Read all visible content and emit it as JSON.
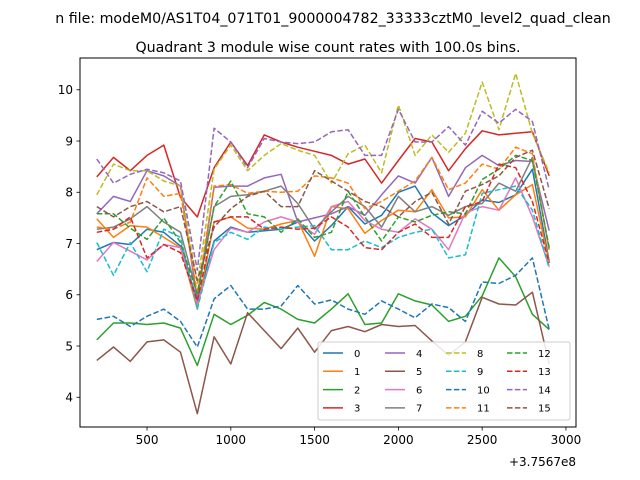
{
  "chart_data": {
    "type": "line",
    "suptitle": "n file: modeM0/AS1T04_071T01_9000004782_33333cztM0_level2_quad_clean",
    "title": "Quadrant 3 module wise count rates with 100.0s bins.",
    "xlabel": "",
    "ylabel": "",
    "offset_label": "+3.7567e8",
    "xlim": [
      100,
      3060
    ],
    "ylim": [
      3.42,
      10.62
    ],
    "xticks": [
      500,
      1000,
      1500,
      2000,
      2500,
      3000
    ],
    "yticks": [
      4,
      5,
      6,
      7,
      8,
      9,
      10
    ],
    "x": [
      200,
      300,
      400,
      500,
      600,
      700,
      800,
      900,
      1000,
      1100,
      1200,
      1300,
      1400,
      1500,
      1600,
      1700,
      1800,
      1900,
      2000,
      2100,
      2200,
      2300,
      2400,
      2500,
      2600,
      2700,
      2800,
      2900
    ],
    "series": [
      {
        "name": "0",
        "color": "#1f77b4",
        "dash": "solid",
        "values": [
          6.88,
          7.02,
          6.98,
          7.28,
          7.22,
          6.95,
          5.88,
          7.05,
          7.32,
          7.22,
          7.25,
          7.28,
          7.42,
          7.05,
          7.35,
          7.72,
          7.38,
          7.55,
          8.0,
          8.12,
          7.6,
          7.35,
          7.55,
          7.85,
          7.8,
          7.95,
          8.45,
          6.65
        ]
      },
      {
        "name": "1",
        "color": "#ff7f0e",
        "dash": "solid",
        "values": [
          7.48,
          7.12,
          7.35,
          7.32,
          7.12,
          6.92,
          5.72,
          7.42,
          7.52,
          7.3,
          7.28,
          7.38,
          7.45,
          6.75,
          7.72,
          7.68,
          7.2,
          7.45,
          7.65,
          7.62,
          8.05,
          7.5,
          7.52,
          8.05,
          7.65,
          7.95,
          8.15,
          6.62
        ]
      },
      {
        "name": "2",
        "color": "#2ca02c",
        "dash": "solid",
        "values": [
          5.12,
          5.45,
          5.45,
          5.42,
          5.45,
          5.35,
          4.62,
          5.62,
          5.42,
          5.6,
          5.85,
          5.72,
          5.52,
          5.45,
          5.72,
          6.02,
          5.42,
          5.45,
          6.02,
          5.88,
          5.8,
          5.48,
          5.58,
          5.98,
          6.72,
          6.35,
          5.62,
          5.32
        ]
      },
      {
        "name": "3",
        "color": "#d62728",
        "dash": "solid",
        "values": [
          8.3,
          8.68,
          8.42,
          8.72,
          8.92,
          7.9,
          7.52,
          8.48,
          8.98,
          8.52,
          9.12,
          8.98,
          8.88,
          8.8,
          8.72,
          8.55,
          8.65,
          8.18,
          8.62,
          9.05,
          8.98,
          8.42,
          8.85,
          9.2,
          9.12,
          9.15,
          9.18,
          8.32
        ]
      },
      {
        "name": "4",
        "color": "#9467bd",
        "dash": "solid",
        "values": [
          7.58,
          7.92,
          7.82,
          8.42,
          8.32,
          8.12,
          5.88,
          8.1,
          8.12,
          8.12,
          8.28,
          8.35,
          7.42,
          7.5,
          7.58,
          7.72,
          7.55,
          7.95,
          8.32,
          8.18,
          8.68,
          7.92,
          8.48,
          8.72,
          8.52,
          8.62,
          8.6,
          7.25
        ]
      },
      {
        "name": "5",
        "color": "#8c564b",
        "dash": "solid",
        "values": [
          4.72,
          4.98,
          4.7,
          5.08,
          5.12,
          4.88,
          3.68,
          5.18,
          4.65,
          5.65,
          5.3,
          4.95,
          5.35,
          4.88,
          5.3,
          5.38,
          5.28,
          5.42,
          5.38,
          5.4,
          5.1,
          4.82,
          5.08,
          5.95,
          5.82,
          5.8,
          6.05,
          4.65
        ]
      },
      {
        "name": "6",
        "color": "#e377c2",
        "dash": "solid",
        "values": [
          6.65,
          7.02,
          6.85,
          6.68,
          6.98,
          6.92,
          5.82,
          6.88,
          7.3,
          7.22,
          7.42,
          7.52,
          7.42,
          7.18,
          7.72,
          7.82,
          7.45,
          7.28,
          7.22,
          7.48,
          7.28,
          6.88,
          7.6,
          7.72,
          7.65,
          8.28,
          7.52,
          6.55
        ]
      },
      {
        "name": "7",
        "color": "#7f7f7f",
        "dash": "solid",
        "values": [
          7.28,
          7.32,
          7.48,
          7.72,
          7.42,
          7.22,
          6.02,
          7.72,
          7.92,
          7.95,
          8.02,
          8.12,
          7.78,
          7.28,
          7.62,
          7.92,
          7.72,
          7.32,
          7.92,
          7.62,
          7.72,
          7.55,
          7.72,
          7.78,
          8.18,
          8.02,
          8.68,
          6.88
        ]
      },
      {
        "name": "8",
        "color": "#bcbd22",
        "dash": "dashed",
        "values": [
          7.95,
          8.55,
          8.42,
          8.42,
          8.22,
          8.12,
          6.22,
          8.45,
          8.92,
          8.42,
          8.72,
          8.95,
          8.82,
          8.72,
          8.18,
          8.75,
          8.92,
          8.38,
          9.7,
          8.72,
          9.12,
          8.78,
          9.15,
          10.15,
          9.22,
          10.32,
          9.15,
          8.38
        ]
      },
      {
        "name": "9",
        "color": "#17becf",
        "dash": "dashed",
        "values": [
          7.02,
          6.38,
          7.02,
          6.45,
          7.28,
          7.12,
          5.72,
          7.02,
          7.22,
          7.08,
          7.32,
          7.28,
          7.32,
          7.35,
          6.88,
          6.88,
          7.05,
          6.92,
          7.12,
          7.22,
          7.28,
          6.72,
          6.78,
          7.98,
          8.05,
          8.12,
          7.65,
          6.52
        ]
      },
      {
        "name": "10",
        "color": "#1f77b4",
        "dash": "dashed",
        "values": [
          5.52,
          5.58,
          5.38,
          5.58,
          5.72,
          5.48,
          4.98,
          5.92,
          6.18,
          5.72,
          5.72,
          5.78,
          6.18,
          5.82,
          5.9,
          5.72,
          5.62,
          5.88,
          5.72,
          5.55,
          5.82,
          5.75,
          5.48,
          6.25,
          6.22,
          6.38,
          6.72,
          5.32
        ]
      },
      {
        "name": "11",
        "color": "#ff7f0e",
        "dash": "dashed",
        "values": [
          7.32,
          7.28,
          7.42,
          8.28,
          7.92,
          7.98,
          6.02,
          8.12,
          8.15,
          7.98,
          8.02,
          8.0,
          8.02,
          8.32,
          8.28,
          8.18,
          7.68,
          7.82,
          8.02,
          8.22,
          8.68,
          8.05,
          8.18,
          8.55,
          8.45,
          8.88,
          8.75,
          6.85
        ]
      },
      {
        "name": "12",
        "color": "#2ca02c",
        "dash": "dashed",
        "values": [
          7.58,
          7.58,
          7.3,
          7.08,
          7.5,
          7.02,
          6.02,
          7.72,
          8.22,
          7.58,
          7.52,
          7.22,
          7.48,
          7.12,
          7.22,
          8.02,
          7.52,
          7.05,
          7.52,
          7.42,
          7.55,
          7.62,
          7.58,
          8.25,
          8.45,
          8.72,
          8.62,
          6.92
        ]
      },
      {
        "name": "13",
        "color": "#d62728",
        "dash": "dashed",
        "values": [
          7.22,
          7.28,
          7.52,
          6.72,
          6.98,
          6.82,
          5.88,
          7.42,
          7.52,
          7.52,
          7.28,
          7.32,
          7.28,
          7.3,
          7.52,
          7.32,
          6.92,
          6.88,
          7.22,
          7.38,
          7.12,
          7.12,
          7.72,
          7.82,
          8.55,
          8.48,
          7.82,
          6.62
        ]
      },
      {
        "name": "14",
        "color": "#9467bd",
        "dash": "dashed",
        "values": [
          8.65,
          8.18,
          8.35,
          8.45,
          8.38,
          8.22,
          6.48,
          9.25,
          8.98,
          8.48,
          9.05,
          8.98,
          8.95,
          8.98,
          9.18,
          9.22,
          8.72,
          8.72,
          9.62,
          8.98,
          8.98,
          9.28,
          8.92,
          9.58,
          9.35,
          9.62,
          9.38,
          8.05
        ]
      },
      {
        "name": "15",
        "color": "#8c564b",
        "dash": "dashed",
        "values": [
          7.72,
          7.52,
          7.72,
          7.82,
          7.62,
          7.72,
          6.28,
          7.32,
          7.68,
          7.92,
          8.02,
          7.72,
          7.72,
          8.42,
          8.22,
          8.02,
          7.82,
          7.72,
          7.52,
          7.82,
          8.0,
          7.38,
          8.02,
          8.15,
          8.32,
          8.68,
          8.82,
          7.68
        ]
      }
    ],
    "grid": false,
    "legend_position": "lower-right",
    "legend_columns": 4
  }
}
